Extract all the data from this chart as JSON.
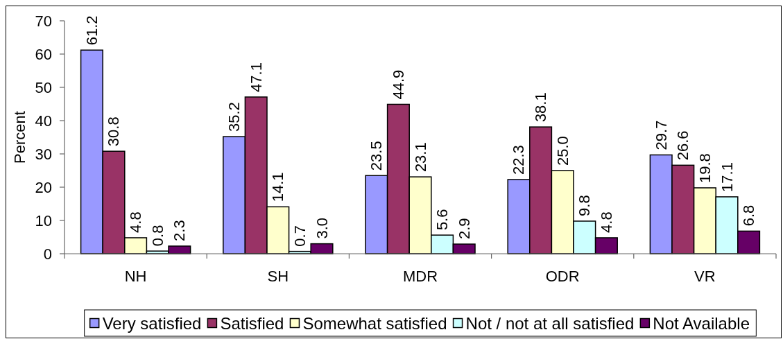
{
  "chart_data": {
    "type": "bar",
    "ylabel": "Percent",
    "categories": [
      "NH",
      "SH",
      "MDR",
      "ODR",
      "VR"
    ],
    "series": [
      {
        "name": "Very satisfied",
        "color": "#9999ff",
        "values": [
          61.2,
          35.2,
          23.5,
          22.3,
          29.7
        ],
        "value_labels": [
          "61.2",
          "35.2",
          "23.5",
          "22.3",
          "29.7"
        ]
      },
      {
        "name": "Satisfied",
        "color": "#993366",
        "values": [
          30.8,
          47.1,
          44.9,
          38.1,
          26.6
        ],
        "value_labels": [
          "30.8",
          "47.1",
          "44.9",
          "38.1",
          "26.6"
        ]
      },
      {
        "name": "Somewhat satisfied",
        "color": "#ffffcc",
        "values": [
          4.8,
          14.1,
          23.1,
          25.0,
          19.8
        ],
        "value_labels": [
          "4.8",
          "14.1",
          "23.1",
          "25.0",
          "19.8"
        ]
      },
      {
        "name": "Not / not at all satisfied",
        "color": "#ccffff",
        "values": [
          0.8,
          0.7,
          5.6,
          9.8,
          17.1
        ],
        "value_labels": [
          "0.8",
          "0.7",
          "5.6",
          "9.8",
          "17.1"
        ]
      },
      {
        "name": "Not Available",
        "color": "#660066",
        "values": [
          2.3,
          3.0,
          2.9,
          4.8,
          6.8
        ],
        "value_labels": [
          "2.3",
          "3.0",
          "2.9",
          "4.8",
          "6.8"
        ]
      }
    ],
    "ylim": [
      0,
      70
    ],
    "yticks": [
      0,
      10,
      20,
      30,
      40,
      50,
      60,
      70
    ],
    "legend": "bottom"
  }
}
